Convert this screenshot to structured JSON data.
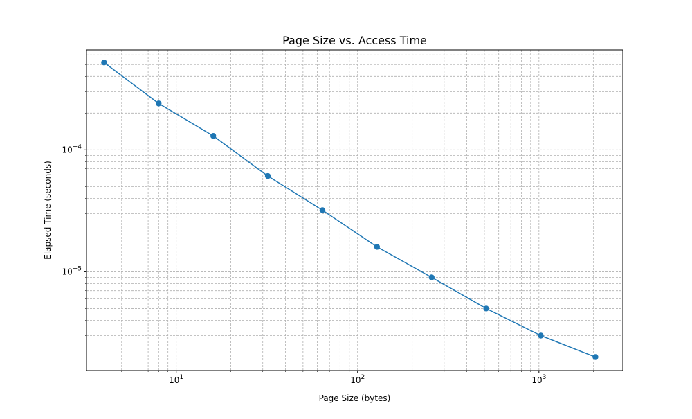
{
  "chart_data": {
    "type": "line",
    "title": "Page Size vs. Access Time",
    "xlabel": "Page Size (bytes)",
    "ylabel": "Elapsed Time (seconds)",
    "x_scale": "log",
    "y_scale": "log",
    "xlim": [
      3.2,
      2900
    ],
    "ylim": [
      1.55e-06,
      0.00066
    ],
    "grid": true,
    "grid_style": "dashed",
    "marker": "circle",
    "color": "#1f77b4",
    "x_ticks": [
      {
        "value": 10,
        "label_base": "10",
        "label_exp": "1"
      },
      {
        "value": 100,
        "label_base": "10",
        "label_exp": "2"
      },
      {
        "value": 1000,
        "label_base": "10",
        "label_exp": "3"
      }
    ],
    "y_ticks": [
      {
        "value": 1e-05,
        "label_base": "10",
        "label_exp": "−5"
      },
      {
        "value": 0.0001,
        "label_base": "10",
        "label_exp": "−4"
      }
    ],
    "series": [
      {
        "x": [
          4,
          8,
          16,
          32,
          64,
          128,
          256,
          512,
          1024,
          2048
        ],
        "y": [
          0.00052,
          0.00024,
          0.00013,
          6.1e-05,
          3.2e-05,
          1.6e-05,
          9e-06,
          5e-06,
          3e-06,
          2e-06
        ]
      }
    ]
  }
}
